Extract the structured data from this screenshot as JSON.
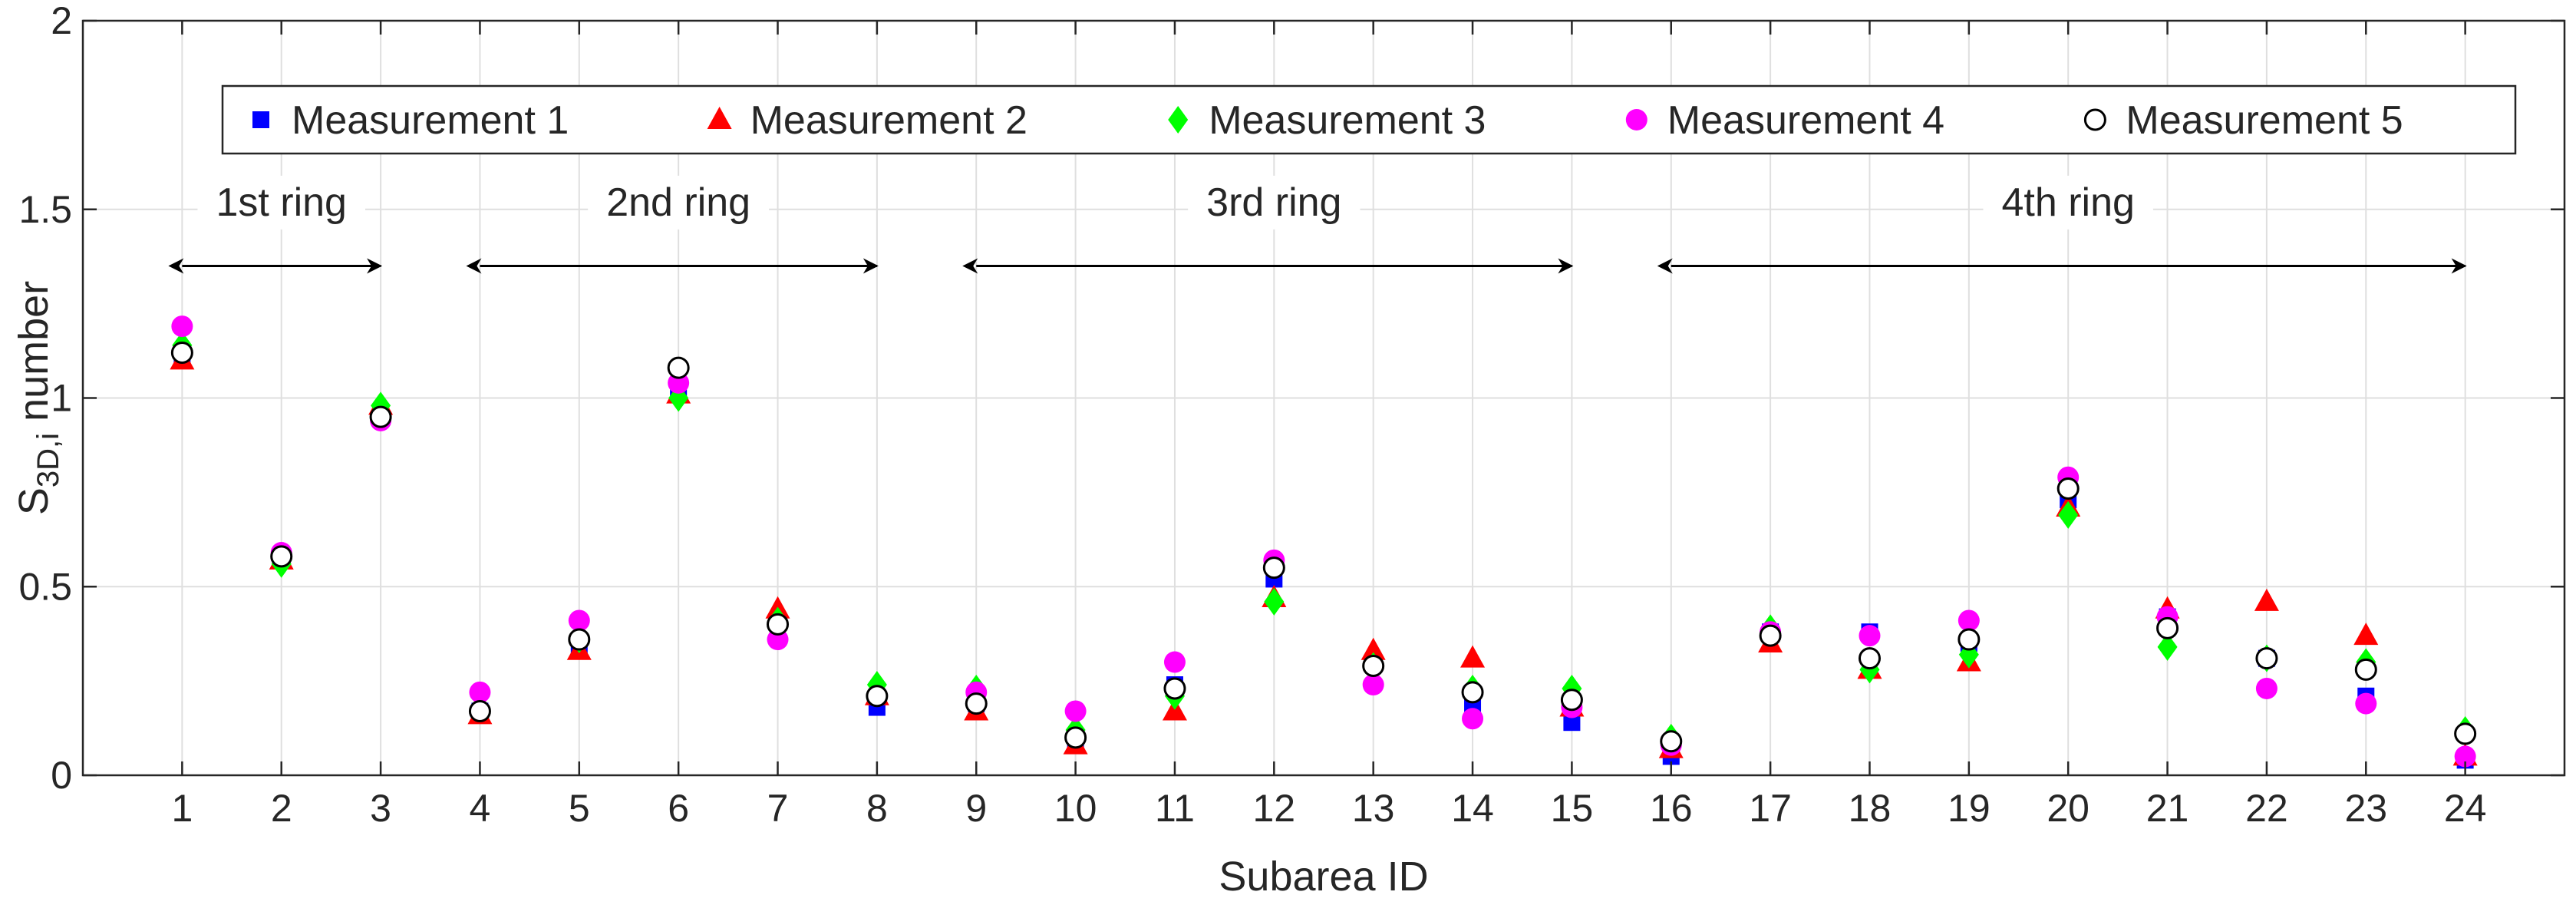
{
  "chart_data": {
    "type": "scatter",
    "xlabel": "Subarea ID",
    "ylabel": {
      "main": "S",
      "sub": "3D,i",
      "rest": " number"
    },
    "xlim": [
      0,
      25
    ],
    "ylim": [
      0,
      2
    ],
    "x_ticks": [
      "1",
      "2",
      "3",
      "4",
      "5",
      "6",
      "7",
      "8",
      "9",
      "10",
      "11",
      "12",
      "13",
      "14",
      "15",
      "16",
      "17",
      "18",
      "19",
      "20",
      "21",
      "22",
      "23",
      "24"
    ],
    "y_ticks": [
      "0",
      "0.5",
      "1",
      "1.5",
      "2"
    ],
    "grid": true,
    "legend": {
      "placement": "top",
      "orientation": "horizontal"
    },
    "x": [
      1,
      2,
      3,
      4,
      5,
      6,
      7,
      8,
      9,
      10,
      11,
      12,
      13,
      14,
      15,
      16,
      17,
      18,
      19,
      20,
      21,
      22,
      23,
      24
    ],
    "series": [
      {
        "name": "Measurement 1",
        "marker": "square",
        "color": "#0000ff",
        "values": [
          1.11,
          0.58,
          0.96,
          0.17,
          0.34,
          1.01,
          0.41,
          0.18,
          0.19,
          0.09,
          0.24,
          0.52,
          0.3,
          0.19,
          0.14,
          0.05,
          0.38,
          0.38,
          0.35,
          0.73,
          0.42,
          0.31,
          0.21,
          0.04
        ]
      },
      {
        "name": "Measurement 2",
        "marker": "triangle",
        "color": "#ff0000",
        "values": [
          1.1,
          0.57,
          0.98,
          0.16,
          0.33,
          1.01,
          0.44,
          0.21,
          0.17,
          0.08,
          0.17,
          0.47,
          0.33,
          0.31,
          0.18,
          0.07,
          0.35,
          0.28,
          0.3,
          0.71,
          0.44,
          0.46,
          0.37,
          0.05
        ]
      },
      {
        "name": "Measurement 3",
        "marker": "diamond",
        "color": "#00ff00",
        "values": [
          1.14,
          0.56,
          0.98,
          0.18,
          0.36,
          1.0,
          0.41,
          0.24,
          0.23,
          0.12,
          0.21,
          0.46,
          0.29,
          0.23,
          0.23,
          0.1,
          0.39,
          0.28,
          0.32,
          0.69,
          0.34,
          0.31,
          0.3,
          0.12
        ]
      },
      {
        "name": "Measurement 4",
        "marker": "circle",
        "color": "#ff00ff",
        "values": [
          1.19,
          0.59,
          0.94,
          0.22,
          0.41,
          1.04,
          0.36,
          0.21,
          0.22,
          0.17,
          0.3,
          0.57,
          0.24,
          0.15,
          0.18,
          0.08,
          0.38,
          0.37,
          0.41,
          0.79,
          0.42,
          0.23,
          0.19,
          0.05
        ]
      },
      {
        "name": "Measurement 5",
        "marker": "open-circle",
        "color": "#000000",
        "values": [
          1.12,
          0.58,
          0.95,
          0.17,
          0.36,
          1.08,
          0.4,
          0.21,
          0.19,
          0.1,
          0.23,
          0.55,
          0.29,
          0.22,
          0.2,
          0.09,
          0.37,
          0.31,
          0.36,
          0.76,
          0.39,
          0.31,
          0.28,
          0.11
        ]
      }
    ],
    "annotations": [
      {
        "text": "1st ring",
        "x_start": 1,
        "x_end": 3,
        "y": 1.35,
        "label_y": 1.52
      },
      {
        "text": "2nd ring",
        "x_start": 4,
        "x_end": 8,
        "y": 1.35,
        "label_y": 1.52
      },
      {
        "text": "3rd ring",
        "x_start": 9,
        "x_end": 15,
        "y": 1.35,
        "label_y": 1.52
      },
      {
        "text": "4th ring",
        "x_start": 16,
        "x_end": 24,
        "y": 1.35,
        "label_y": 1.52
      }
    ],
    "colors": {
      "axis": "#262626",
      "grid": "#dfdfdf"
    }
  }
}
